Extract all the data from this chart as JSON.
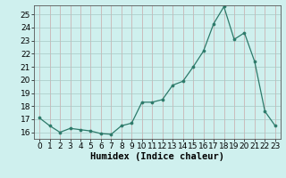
{
  "x": [
    0,
    1,
    2,
    3,
    4,
    5,
    6,
    7,
    8,
    9,
    10,
    11,
    12,
    13,
    14,
    15,
    16,
    17,
    18,
    19,
    20,
    21,
    22,
    23
  ],
  "y": [
    17.1,
    16.5,
    16.0,
    16.3,
    16.2,
    16.1,
    15.9,
    15.85,
    16.5,
    16.7,
    18.3,
    18.3,
    18.5,
    19.6,
    19.9,
    21.0,
    22.2,
    24.3,
    25.6,
    23.1,
    23.6,
    21.4,
    17.6,
    16.5
  ],
  "line_color": "#2d7a6a",
  "marker": "o",
  "marker_size": 2.2,
  "bg_color": "#cff0ee",
  "grid_color": "#b8d8d5",
  "grid_color2": "#d4aeae",
  "xlabel": "Humidex (Indice chaleur)",
  "xlim": [
    -0.5,
    23.5
  ],
  "ylim": [
    15.5,
    25.7
  ],
  "yticks": [
    16,
    17,
    18,
    19,
    20,
    21,
    22,
    23,
    24,
    25
  ],
  "xticks": [
    0,
    1,
    2,
    3,
    4,
    5,
    6,
    7,
    8,
    9,
    10,
    11,
    12,
    13,
    14,
    15,
    16,
    17,
    18,
    19,
    20,
    21,
    22,
    23
  ],
  "xlabel_fontsize": 7.5,
  "tick_fontsize": 6.5
}
